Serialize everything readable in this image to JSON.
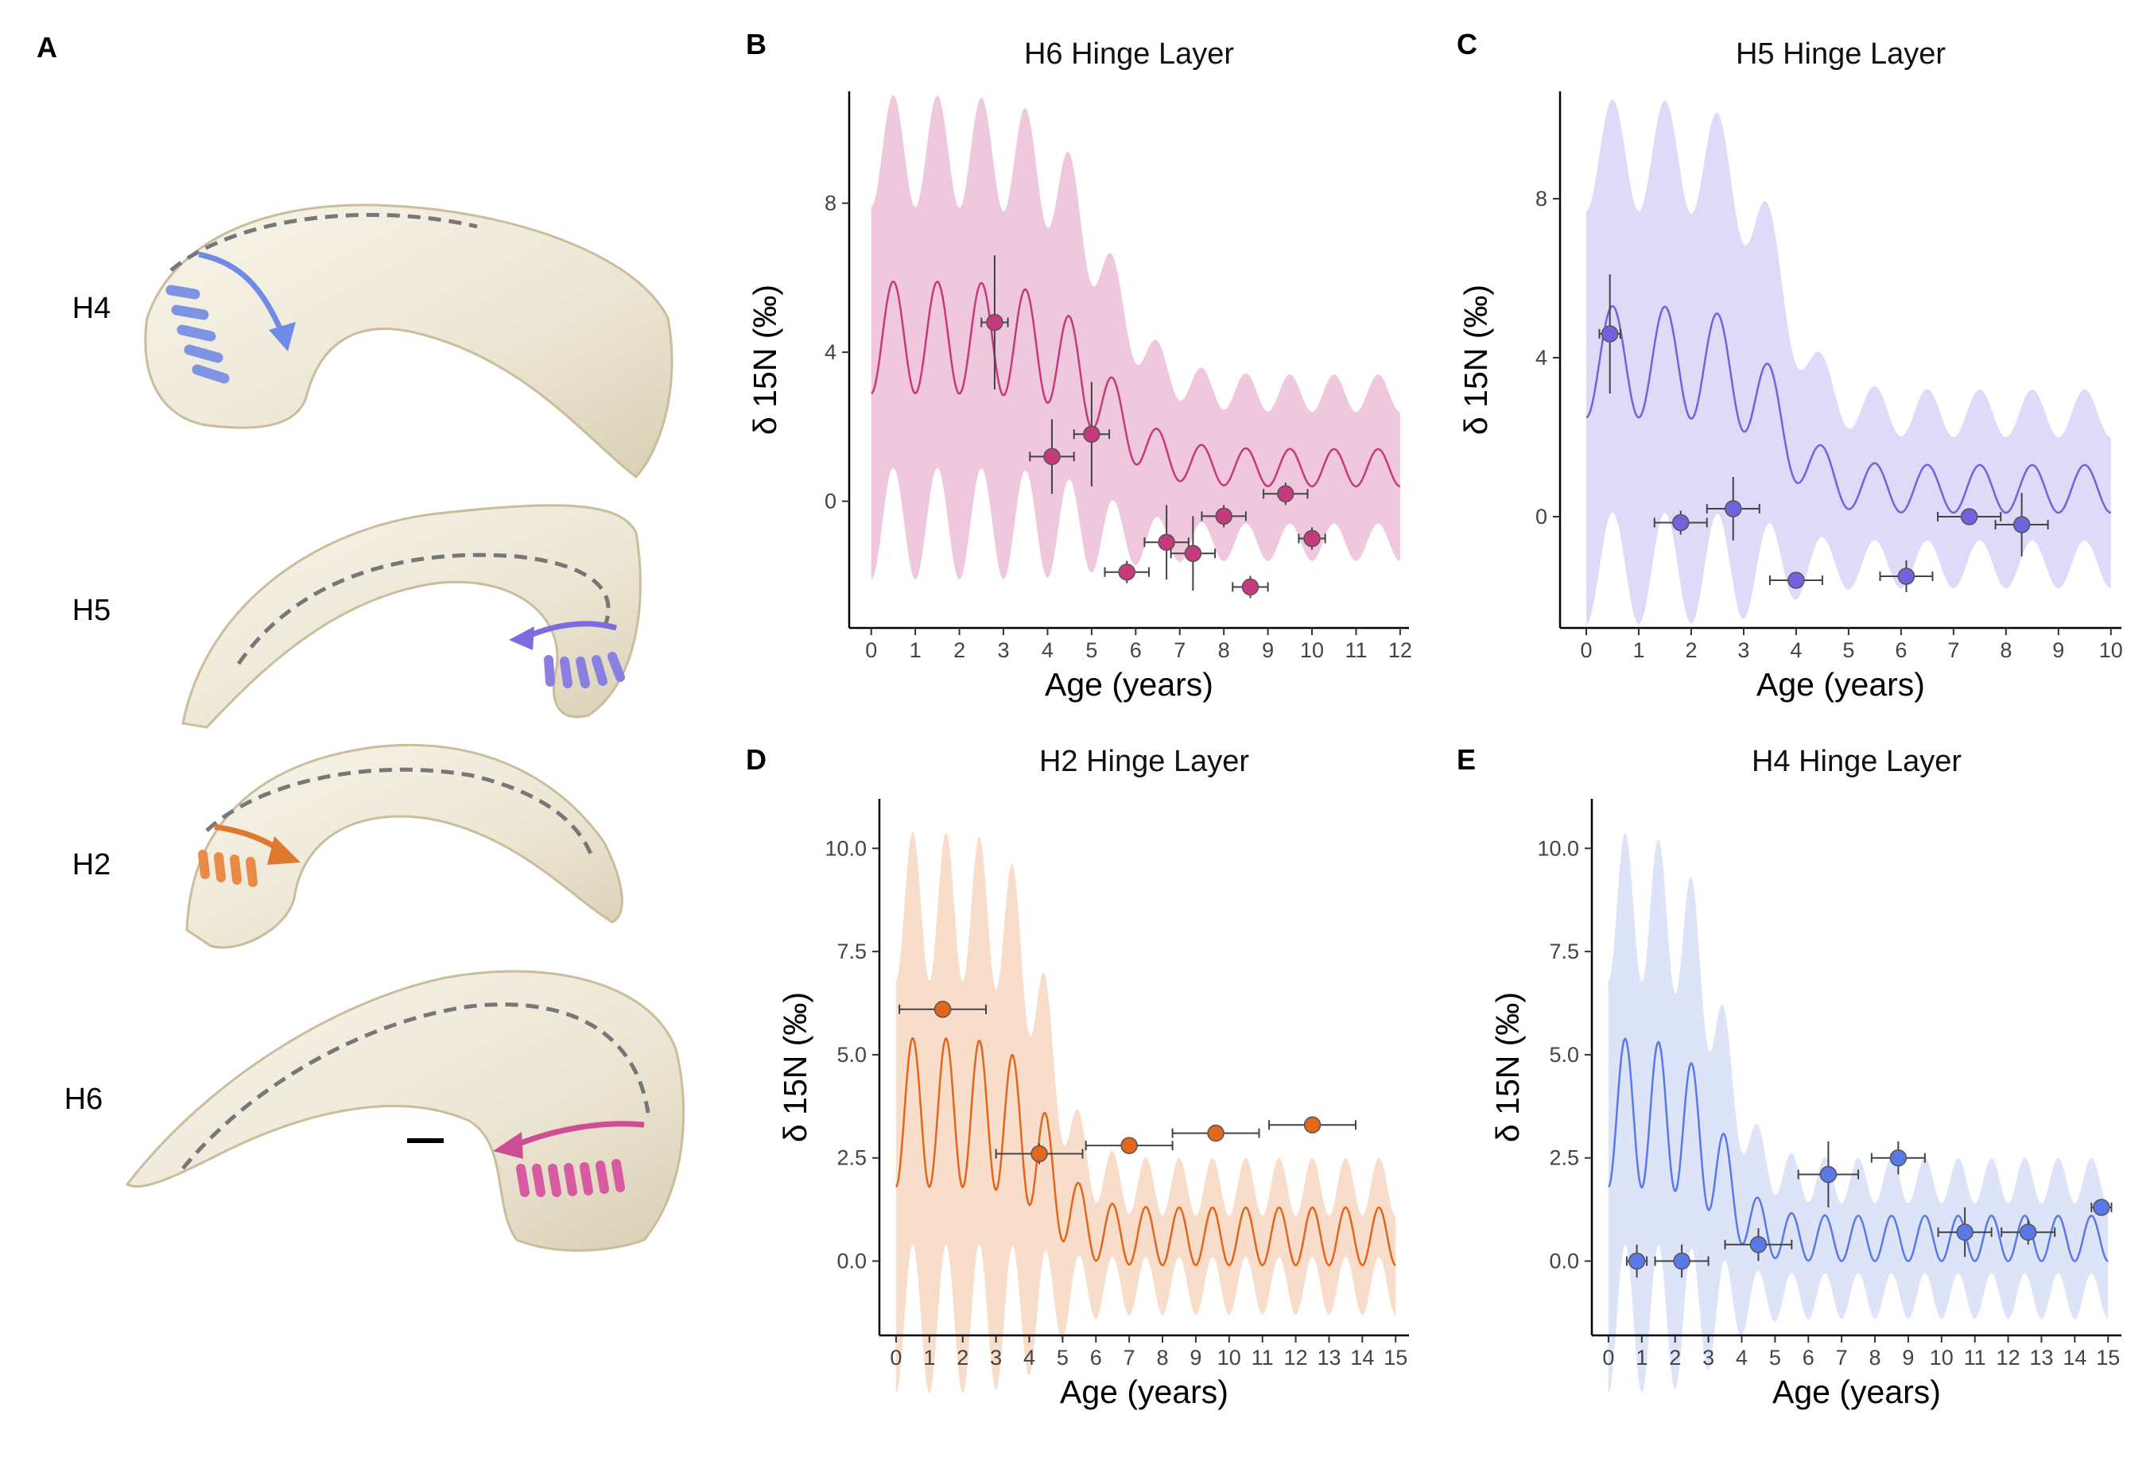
{
  "panel_letters": {
    "a": "A",
    "b": "B",
    "c": "C",
    "d": "D",
    "e": "E"
  },
  "shell_labels": [
    "H4",
    "H5",
    "H2",
    "H6"
  ],
  "colors": {
    "pink": "#c53a7d",
    "purple": "#7063db",
    "orange": "#e0671c",
    "blue": "#5a79e8"
  },
  "chart_data": [
    {
      "id": "B",
      "type": "line",
      "title": "H6 Hinge Layer",
      "xlabel": "Age (years)",
      "ylabel": "δ 15N (‰)",
      "color": "#c53a7d",
      "band": "#e9b6d3",
      "xlim": [
        -0.5,
        12.2
      ],
      "ylim": [
        -3.4,
        11
      ],
      "xticks": [
        0,
        1,
        2,
        3,
        4,
        5,
        6,
        7,
        8,
        9,
        10,
        11,
        12
      ],
      "yticks": [
        0,
        4,
        8
      ],
      "ytick_labels": [
        "0",
        "4",
        "8"
      ],
      "model": {
        "base_hi": 4.4,
        "base_lo": 0.9,
        "drop_center": 5.3,
        "drop_width": 0.6,
        "amp_hi": 1.5,
        "amp_lo": 0.5,
        "band_hi": 5.0,
        "band_lo": 2.0,
        "x_end": 12
      },
      "points": [
        {
          "x": 2.8,
          "y": 4.8,
          "xerr": 0.3,
          "yerr": 1.8
        },
        {
          "x": 4.1,
          "y": 1.2,
          "xerr": 0.5,
          "yerr": 1.0
        },
        {
          "x": 5.0,
          "y": 1.8,
          "xerr": 0.4,
          "yerr": 1.4
        },
        {
          "x": 5.8,
          "y": -1.9,
          "xerr": 0.5,
          "yerr": 0.3
        },
        {
          "x": 6.7,
          "y": -1.1,
          "xerr": 0.5,
          "yerr": 1.0
        },
        {
          "x": 7.3,
          "y": -1.4,
          "xerr": 0.5,
          "yerr": 1.0
        },
        {
          "x": 8.0,
          "y": -0.4,
          "xerr": 0.5,
          "yerr": 0.3
        },
        {
          "x": 8.6,
          "y": -2.3,
          "xerr": 0.4,
          "yerr": 0.3
        },
        {
          "x": 9.4,
          "y": 0.2,
          "xerr": 0.5,
          "yerr": 0.3
        },
        {
          "x": 10.0,
          "y": -1.0,
          "xerr": 0.3,
          "yerr": 0.3
        }
      ]
    },
    {
      "id": "C",
      "type": "line",
      "title": "H5 Hinge Layer",
      "xlabel": "Age (years)",
      "ylabel": "δ 15N (‰)",
      "color": "#7063db",
      "band": "#d4cdf5",
      "xlim": [
        -0.5,
        10.2
      ],
      "ylim": [
        -2.8,
        10.7
      ],
      "xticks": [
        0,
        1,
        2,
        3,
        4,
        5,
        6,
        7,
        8,
        9,
        10
      ],
      "yticks": [
        0,
        4,
        8
      ],
      "ytick_labels": [
        "0",
        "4",
        "8"
      ],
      "model": {
        "base_hi": 3.9,
        "base_lo": 0.7,
        "drop_center": 3.7,
        "drop_width": 0.4,
        "amp_hi": 1.4,
        "amp_lo": 0.6,
        "band_hi": 5.2,
        "band_lo": 1.9,
        "x_end": 10
      },
      "points": [
        {
          "x": 0.45,
          "y": 4.6,
          "xerr": 0.2,
          "yerr": 1.5
        },
        {
          "x": 1.8,
          "y": -0.15,
          "xerr": 0.5,
          "yerr": 0.3
        },
        {
          "x": 2.8,
          "y": 0.2,
          "xerr": 0.5,
          "yerr": 0.8
        },
        {
          "x": 4.0,
          "y": -1.6,
          "xerr": 0.5,
          "yerr": 0.2
        },
        {
          "x": 6.1,
          "y": -1.5,
          "xerr": 0.5,
          "yerr": 0.4
        },
        {
          "x": 7.3,
          "y": 0.0,
          "xerr": 0.6,
          "yerr": 0.2
        },
        {
          "x": 8.3,
          "y": -0.2,
          "xerr": 0.5,
          "yerr": 0.8
        }
      ]
    },
    {
      "id": "D",
      "type": "line",
      "title": "H2 Hinge Layer",
      "xlabel": "Age (years)",
      "ylabel": "δ 15N (‰)",
      "color": "#e0671c",
      "band": "#f5d2ba",
      "xlim": [
        -0.5,
        15.4
      ],
      "ylim": [
        -1.8,
        11.2
      ],
      "xticks": [
        0,
        1,
        2,
        3,
        4,
        5,
        6,
        7,
        8,
        9,
        10,
        11,
        12,
        13,
        14,
        15
      ],
      "yticks": [
        0,
        2.5,
        5,
        7.5,
        10
      ],
      "ytick_labels": [
        "0.0",
        "2.5",
        "5.0",
        "7.5",
        "10.0"
      ],
      "model": {
        "base_hi": 3.6,
        "base_lo": 0.6,
        "drop_center": 4.6,
        "drop_width": 0.5,
        "amp_hi": 1.8,
        "amp_lo": 0.7,
        "band_hi": 5.0,
        "band_lo": 1.2,
        "x_end": 15
      },
      "points": [
        {
          "x": 1.4,
          "y": 6.1,
          "xerr": 1.3,
          "yerr": 0.15
        },
        {
          "x": 4.3,
          "y": 2.6,
          "xerr": 1.3,
          "yerr": 0.25
        },
        {
          "x": 7.0,
          "y": 2.8,
          "xerr": 1.3,
          "yerr": 0.2
        },
        {
          "x": 9.6,
          "y": 3.1,
          "xerr": 1.3,
          "yerr": 0.2
        },
        {
          "x": 12.5,
          "y": 3.3,
          "xerr": 1.3,
          "yerr": 0.2
        }
      ]
    },
    {
      "id": "E",
      "type": "line",
      "title": "H4 Hinge Layer",
      "xlabel": "Age (years)",
      "ylabel": "δ 15N (‰)",
      "color": "#5a79e8",
      "band": "#d2dbf6",
      "xlim": [
        -0.5,
        15.4
      ],
      "ylim": [
        -1.8,
        11.2
      ],
      "xticks": [
        0,
        1,
        2,
        3,
        4,
        5,
        6,
        7,
        8,
        9,
        10,
        11,
        12,
        13,
        14,
        15
      ],
      "yticks": [
        0,
        2.5,
        5,
        7.5,
        10
      ],
      "ytick_labels": [
        "0.0",
        "2.5",
        "5.0",
        "7.5",
        "10.0"
      ],
      "model": {
        "base_hi": 3.6,
        "base_lo": 0.55,
        "drop_center": 3.4,
        "drop_width": 0.5,
        "amp_hi": 1.8,
        "amp_lo": 0.55,
        "band_hi": 5.0,
        "band_lo": 1.4,
        "x_end": 15
      },
      "points": [
        {
          "x": 0.85,
          "y": 0.0,
          "xerr": 0.3,
          "yerr": 0.4
        },
        {
          "x": 2.2,
          "y": 0.0,
          "xerr": 0.8,
          "yerr": 0.4
        },
        {
          "x": 4.5,
          "y": 0.4,
          "xerr": 1.0,
          "yerr": 0.4
        },
        {
          "x": 6.6,
          "y": 2.1,
          "xerr": 0.9,
          "yerr": 0.8
        },
        {
          "x": 8.7,
          "y": 2.5,
          "xerr": 0.8,
          "yerr": 0.4
        },
        {
          "x": 10.7,
          "y": 0.7,
          "xerr": 0.8,
          "yerr": 0.6
        },
        {
          "x": 12.6,
          "y": 0.7,
          "xerr": 0.8,
          "yerr": 0.3
        },
        {
          "x": 14.8,
          "y": 1.3,
          "xerr": 0.3,
          "yerr": 0.2
        }
      ]
    }
  ]
}
